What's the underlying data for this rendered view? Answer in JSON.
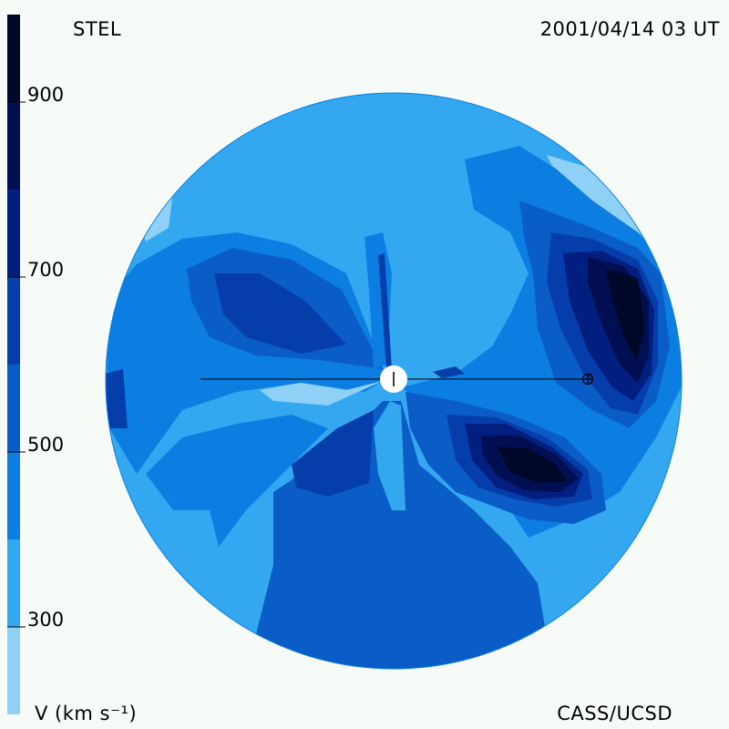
{
  "header": {
    "observatory": "STEL",
    "timestamp": "2001/04/14 03 UT"
  },
  "footer": {
    "velocity_unit": "V (km s⁻¹)",
    "credit": "CASS/UCSD"
  },
  "colorbar": {
    "ticks": [
      {
        "value": 900,
        "label": "900"
      },
      {
        "value": 700,
        "label": "700"
      },
      {
        "value": 500,
        "label": "500"
      },
      {
        "value": 300,
        "label": "300"
      }
    ],
    "range": [
      200,
      1000
    ],
    "levels": [
      {
        "from": 200,
        "to": 300,
        "color": "#8fd0f6"
      },
      {
        "from": 300,
        "to": 400,
        "color": "#33a8f0"
      },
      {
        "from": 400,
        "to": 500,
        "color": "#0c7ee2"
      },
      {
        "from": 500,
        "to": 600,
        "color": "#0a5dc6"
      },
      {
        "from": 600,
        "to": 700,
        "color": "#053eaa"
      },
      {
        "from": 700,
        "to": 800,
        "color": "#021f80"
      },
      {
        "from": 800,
        "to": 900,
        "color": "#010f52"
      },
      {
        "from": 900,
        "to": 1000,
        "color": "#000828"
      }
    ]
  }
}
